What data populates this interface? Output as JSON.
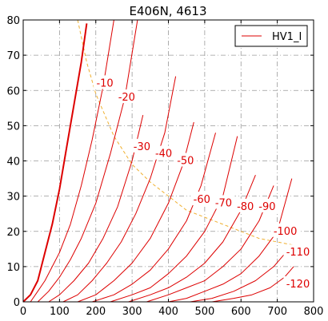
{
  "chart_data": {
    "type": "line",
    "title": "E406N, 4613",
    "xlabel": "",
    "ylabel": "",
    "xlim": [
      0,
      800
    ],
    "ylim": [
      0,
      80
    ],
    "x_ticks": [
      0,
      100,
      200,
      300,
      400,
      500,
      600,
      700,
      800
    ],
    "y_ticks": [
      0,
      10,
      20,
      30,
      40,
      50,
      60,
      70,
      80
    ],
    "grid": true,
    "legend_position": "top-right",
    "colors": {
      "curve": "#dd0000",
      "dissipation": "#f0b030",
      "grid": "#999999",
      "label_bg": "#ffffff"
    },
    "series": [
      {
        "name": "HV1_I",
        "grid_voltage": "0",
        "points": [
          [
            0,
            0
          ],
          [
            20,
            2
          ],
          [
            40,
            6
          ],
          [
            60,
            14
          ],
          [
            80,
            22
          ],
          [
            100,
            32
          ],
          [
            120,
            44
          ],
          [
            140,
            56
          ],
          [
            160,
            68
          ],
          [
            175,
            79
          ]
        ]
      },
      {
        "grid_voltage": "-10",
        "label": "-10",
        "label_at": [
          225,
          62
        ],
        "points": [
          [
            20,
            0
          ],
          [
            40,
            3
          ],
          [
            60,
            6
          ],
          [
            80,
            10
          ],
          [
            100,
            14
          ],
          [
            130,
            22
          ],
          [
            160,
            33
          ],
          [
            190,
            46
          ],
          [
            220,
            61
          ],
          [
            250,
            80
          ]
        ]
      },
      {
        "grid_voltage": "-20",
        "label": "-20",
        "label_at": [
          285,
          58
        ],
        "points": [
          [
            40,
            0
          ],
          [
            70,
            3
          ],
          [
            100,
            7
          ],
          [
            130,
            12
          ],
          [
            160,
            18
          ],
          [
            200,
            28
          ],
          [
            240,
            42
          ],
          [
            280,
            58
          ],
          [
            315,
            80
          ]
        ]
      },
      {
        "grid_voltage": "-30",
        "label": "-30",
        "label_at": [
          327,
          44
        ],
        "points": [
          [
            70,
            0
          ],
          [
            100,
            2
          ],
          [
            140,
            6
          ],
          [
            180,
            11
          ],
          [
            220,
            18
          ],
          [
            260,
            27
          ],
          [
            300,
            40
          ],
          [
            330,
            53
          ]
        ]
      },
      {
        "grid_voltage": "-40",
        "label": "-40",
        "label_at": [
          387,
          42
        ],
        "points": [
          [
            110,
            0
          ],
          [
            150,
            2
          ],
          [
            190,
            6
          ],
          [
            230,
            11
          ],
          [
            270,
            17
          ],
          [
            310,
            25
          ],
          [
            350,
            35
          ],
          [
            390,
            48
          ],
          [
            420,
            64
          ]
        ]
      },
      {
        "grid_voltage": "-50",
        "label": "-50",
        "label_at": [
          447,
          40
        ],
        "points": [
          [
            150,
            0
          ],
          [
            200,
            2
          ],
          [
            250,
            6
          ],
          [
            300,
            11
          ],
          [
            350,
            18
          ],
          [
            400,
            28
          ],
          [
            440,
            39
          ],
          [
            470,
            51
          ]
        ]
      },
      {
        "grid_voltage": "-60",
        "label": "-60",
        "label_at": [
          492,
          29
        ],
        "points": [
          [
            190,
            0
          ],
          [
            250,
            2
          ],
          [
            300,
            5
          ],
          [
            350,
            9
          ],
          [
            400,
            15
          ],
          [
            450,
            23
          ],
          [
            490,
            33
          ],
          [
            530,
            48
          ]
        ]
      },
      {
        "grid_voltage": "-70",
        "label": "-70",
        "label_at": [
          552,
          28
        ],
        "points": [
          [
            240,
            0
          ],
          [
            300,
            2
          ],
          [
            350,
            4
          ],
          [
            400,
            8
          ],
          [
            450,
            13
          ],
          [
            500,
            20
          ],
          [
            550,
            30
          ],
          [
            590,
            47
          ]
        ]
      },
      {
        "grid_voltage": "-80",
        "label": "-80",
        "label_at": [
          612,
          27
        ],
        "points": [
          [
            290,
            0
          ],
          [
            350,
            2
          ],
          [
            400,
            4
          ],
          [
            450,
            7
          ],
          [
            500,
            11
          ],
          [
            550,
            17
          ],
          [
            600,
            26
          ],
          [
            640,
            36
          ]
        ]
      },
      {
        "grid_voltage": "-90",
        "label": "-90",
        "label_at": [
          672,
          27
        ],
        "points": [
          [
            340,
            0
          ],
          [
            400,
            2
          ],
          [
            450,
            4
          ],
          [
            500,
            6
          ],
          [
            550,
            10
          ],
          [
            600,
            15
          ],
          [
            650,
            23
          ],
          [
            690,
            33
          ]
        ]
      },
      {
        "grid_voltage": "-100",
        "label": "-100",
        "label_at": [
          722,
          20
        ],
        "points": [
          [
            400,
            0
          ],
          [
            450,
            1
          ],
          [
            500,
            3
          ],
          [
            550,
            5
          ],
          [
            600,
            8
          ],
          [
            650,
            13
          ],
          [
            700,
            20
          ],
          [
            740,
            35
          ]
        ]
      },
      {
        "grid_voltage": "-110",
        "label": "-110",
        "label_at": [
          757,
          14
        ],
        "points": [
          [
            460,
            0
          ],
          [
            520,
            1
          ],
          [
            580,
            3
          ],
          [
            640,
            6
          ],
          [
            690,
            10
          ],
          [
            740,
            16
          ]
        ]
      },
      {
        "grid_voltage": "-120",
        "label": "-120",
        "label_at": [
          757,
          5
        ],
        "points": [
          [
            520,
            0
          ],
          [
            580,
            1
          ],
          [
            630,
            2
          ],
          [
            680,
            4
          ],
          [
            720,
            7
          ],
          [
            745,
            10
          ]
        ]
      }
    ],
    "dissipation_curve": [
      [
        150,
        80
      ],
      [
        175,
        68
      ],
      [
        200,
        59
      ],
      [
        225,
        53
      ],
      [
        250,
        47
      ],
      [
        300,
        39
      ],
      [
        350,
        34
      ],
      [
        400,
        30
      ],
      [
        450,
        26
      ],
      [
        500,
        24
      ],
      [
        550,
        22
      ],
      [
        600,
        20
      ],
      [
        650,
        18
      ],
      [
        700,
        17
      ],
      [
        750,
        16
      ]
    ]
  }
}
